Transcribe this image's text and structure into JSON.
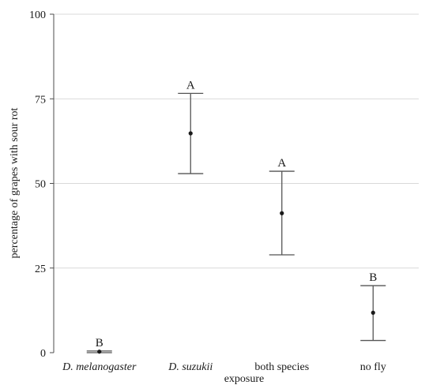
{
  "chart_data": {
    "type": "scatter",
    "xlabel": "exposure",
    "ylabel": "percentage of grapes with sour rot",
    "ylim": [
      0,
      100
    ],
    "yticks": [
      0,
      25,
      50,
      75,
      100
    ],
    "categories": [
      "D. melanogaster",
      "D. suzukii",
      "both species",
      "no fly"
    ],
    "category_italic": [
      true,
      true,
      false,
      false
    ],
    "points": [
      {
        "category": "D. melanogaster",
        "mean": 0.3,
        "lower": 0,
        "upper": 0.5,
        "group_letter": "B"
      },
      {
        "category": "D. suzukii",
        "mean": 64.8,
        "lower": 52.9,
        "upper": 76.6,
        "group_letter": "A"
      },
      {
        "category": "both species",
        "mean": 41.2,
        "lower": 28.9,
        "upper": 53.6,
        "group_letter": "A"
      },
      {
        "category": "no fly",
        "mean": 11.8,
        "lower": 3.6,
        "upper": 19.8,
        "group_letter": "B"
      }
    ],
    "grid": true,
    "colors": {
      "grid": "#d9d9d9",
      "axis": "#4d4d4d",
      "errorbar": "#555555",
      "point": "#1a1a1a"
    }
  }
}
